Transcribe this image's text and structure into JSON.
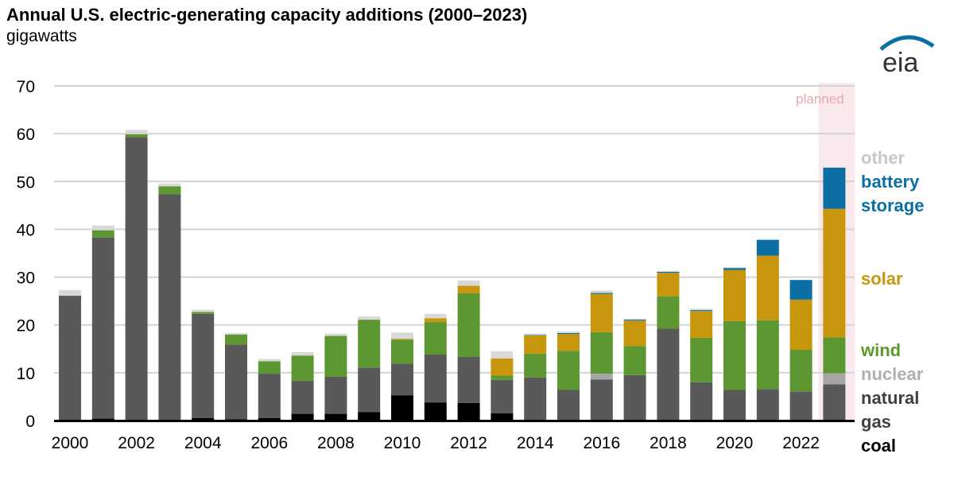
{
  "title": "Annual U.S. electric-generating capacity additions (2000–2023)",
  "unit": "gigawatts",
  "logo_text": "eia",
  "chart_data": {
    "type": "bar",
    "stacked": true,
    "title": "Annual U.S. electric-generating capacity additions (2000–2023)",
    "ylabel": "gigawatts",
    "ylim": [
      0,
      70
    ],
    "yticks": [
      0,
      10,
      20,
      30,
      40,
      50,
      60,
      70
    ],
    "xtick_labels": [
      "2000",
      "2002",
      "2004",
      "2006",
      "2008",
      "2010",
      "2012",
      "2014",
      "2016",
      "2018",
      "2020",
      "2022"
    ],
    "grid": true,
    "legend_placement": "right",
    "annotation": "planned",
    "planned_years": [
      2023
    ],
    "categories": [
      2000,
      2001,
      2002,
      2003,
      2004,
      2005,
      2006,
      2007,
      2008,
      2009,
      2010,
      2011,
      2012,
      2013,
      2014,
      2015,
      2016,
      2017,
      2018,
      2019,
      2020,
      2021,
      2022,
      2023
    ],
    "series": [
      {
        "name": "coal",
        "color": "#000000",
        "values": [
          0,
          0.4,
          0,
          0,
          0.5,
          0.3,
          0.5,
          1.4,
          1.4,
          1.8,
          5.3,
          3.8,
          3.7,
          1.5,
          0,
          0,
          0,
          0,
          0,
          0,
          0,
          0,
          0,
          0
        ]
      },
      {
        "name": "natural gas",
        "color": "#595959",
        "values": [
          26.1,
          37.9,
          59.3,
          47.3,
          21.8,
          15.6,
          9.3,
          6.9,
          7.8,
          9.3,
          6.6,
          10.0,
          9.6,
          7.0,
          9.0,
          6.4,
          8.6,
          9.5,
          19.2,
          8.0,
          6.4,
          6.6,
          6.1,
          7.6
        ]
      },
      {
        "name": "nuclear",
        "color": "#a6a6a6",
        "values": [
          0,
          0,
          0,
          0,
          0,
          0,
          0,
          0,
          0,
          0,
          0,
          0,
          0,
          0,
          0,
          0,
          1.2,
          0,
          0,
          0,
          0,
          0,
          0,
          2.3
        ]
      },
      {
        "name": "wind",
        "color": "#5d9731",
        "values": [
          0,
          1.5,
          0.6,
          1.7,
          0.4,
          2.1,
          2.6,
          5.3,
          8.5,
          10.0,
          5.0,
          6.8,
          13.3,
          0.9,
          5.0,
          8.2,
          8.7,
          6.1,
          6.8,
          9.3,
          14.4,
          14.4,
          8.7,
          7.5
        ]
      },
      {
        "name": "solar",
        "color": "#c8960c",
        "values": [
          0,
          0,
          0,
          0,
          0,
          0,
          0,
          0,
          0,
          0,
          0.2,
          0.8,
          1.6,
          3.6,
          3.8,
          3.5,
          8.0,
          5.3,
          4.9,
          5.6,
          10.7,
          13.5,
          10.5,
          26.9
        ]
      },
      {
        "name": "battery storage",
        "color": "#0b6fa3",
        "values": [
          0,
          0,
          0,
          0,
          0,
          0,
          0,
          0,
          0,
          0,
          0,
          0,
          0,
          0,
          0.1,
          0.2,
          0.2,
          0.2,
          0.2,
          0.2,
          0.4,
          3.3,
          4.1,
          8.6
        ]
      },
      {
        "name": "other",
        "color": "#d9d9d9",
        "values": [
          1.2,
          1.0,
          0.9,
          0.6,
          0.5,
          0.3,
          0.5,
          0.7,
          0.5,
          0.7,
          1.3,
          0.9,
          1.1,
          1.5,
          0.3,
          0.3,
          0.5,
          0.2,
          0.2,
          0.3,
          0.2,
          0,
          0,
          0
        ]
      }
    ],
    "legend": [
      {
        "label": "other",
        "color": "#c8c8c8"
      },
      {
        "label": "battery",
        "color": "#0b6fa3"
      },
      {
        "label": "storage",
        "color": "#0b6fa3"
      },
      {
        "label": "solar",
        "color": "#c8960c"
      },
      {
        "label": "wind",
        "color": "#5d9731"
      },
      {
        "label": "nuclear",
        "color": "#b0b0b0"
      },
      {
        "label": "natural",
        "color": "#404040"
      },
      {
        "label": "gas",
        "color": "#404040"
      },
      {
        "label": "coal",
        "color": "#000000"
      }
    ]
  }
}
